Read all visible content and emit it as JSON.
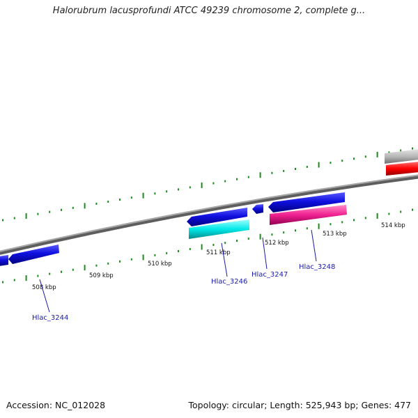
{
  "title": "Halorubrum lacusprofundi ATCC 49239 chromosome 2, complete g...",
  "accession_text": "Accession: NC_012028",
  "summary_text": "Topology: circular; Length: 525,943 bp; Genes: 477",
  "colors": {
    "backbone": "#808080",
    "tick": "#1a8c1a",
    "gene_blue": "#1010e0",
    "gene_cyan": "#00e8e8",
    "gene_pink": "#f02090",
    "gene_red": "#ff0000",
    "gene_gray": "#b8b8b8",
    "label": "#1a1aa6"
  },
  "scale_labels": [
    "508 kbp",
    "509 kbp",
    "510 kbp",
    "511 kbp",
    "512 kbp",
    "513 kbp",
    "514 kbp"
  ],
  "gene_labels": [
    "Hlac_3244",
    "Hlac_3246",
    "Hlac_3247",
    "Hlac_3248"
  ]
}
